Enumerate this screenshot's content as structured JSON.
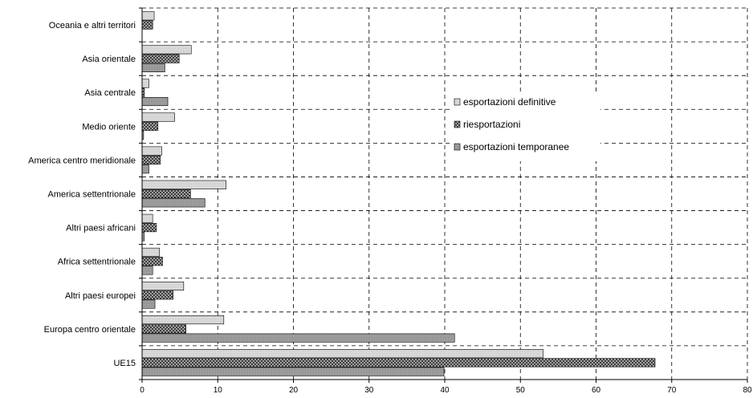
{
  "chart_data": {
    "type": "bar",
    "orientation": "horizontal",
    "categories": [
      "Oceania e altri territori",
      "Asia orientale",
      "Asia centrale",
      "Medio oriente",
      "America centro meridionale",
      "America settentrionale",
      "Altri paesi africani",
      "Africa settentrionale",
      "Altri paesi europei",
      "Europa centro orientale",
      "UE15"
    ],
    "series": [
      {
        "name": "esportazioni definitive",
        "values": [
          1.6,
          6.5,
          0.9,
          4.3,
          2.6,
          11.1,
          1.4,
          2.3,
          5.5,
          10.8,
          53.0
        ]
      },
      {
        "name": "riesportazioni",
        "values": [
          1.4,
          4.9,
          0.3,
          2.1,
          2.4,
          6.4,
          1.9,
          2.7,
          4.1,
          5.8,
          67.8
        ]
      },
      {
        "name": "esportazioni temporanee",
        "values": [
          0.0,
          3.0,
          3.4,
          0.2,
          0.9,
          8.3,
          0.3,
          1.4,
          1.7,
          41.3,
          39.9
        ]
      }
    ],
    "xlim": [
      0,
      80
    ],
    "xticks": [
      0,
      10,
      20,
      30,
      40,
      50,
      60,
      70,
      80
    ],
    "grid": true,
    "legend_position": "right",
    "title": "",
    "xlabel": "",
    "ylabel": ""
  },
  "colors": {
    "series": [
      "#d6d6d6",
      "#6e6e6e",
      "#9a9a9a"
    ],
    "stroke": "#000000",
    "grid": "#000000"
  }
}
